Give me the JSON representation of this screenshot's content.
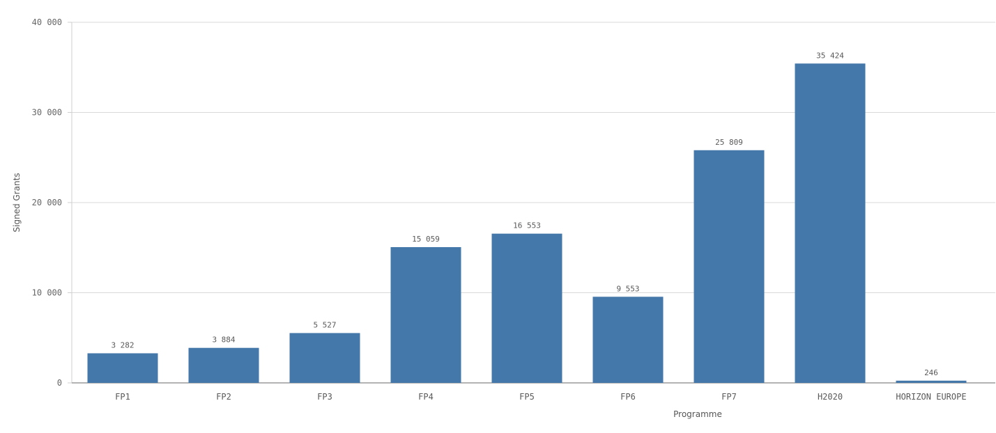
{
  "chart_data": {
    "type": "bar",
    "title": "",
    "xlabel": "Programme",
    "ylabel": "Signed Grants",
    "categories": [
      "FP1",
      "FP2",
      "FP3",
      "FP4",
      "FP5",
      "FP6",
      "FP7",
      "H2020",
      "HORIZON EUROPE"
    ],
    "values": [
      3282,
      3884,
      5527,
      15059,
      16553,
      9553,
      25809,
      35424,
      246
    ],
    "value_labels": [
      "3 282",
      "3 884",
      "5 527",
      "15 059",
      "16 553",
      "9 553",
      "25 809",
      "35 424",
      "246"
    ],
    "ylim": [
      0,
      40000
    ],
    "yticks": [
      0,
      10000,
      20000,
      30000,
      40000
    ],
    "ytick_labels": [
      "0",
      "10 000",
      "20 000",
      "30 000",
      "40 000"
    ],
    "grid": true,
    "legend": "none",
    "bar_color": "#4477aa"
  }
}
